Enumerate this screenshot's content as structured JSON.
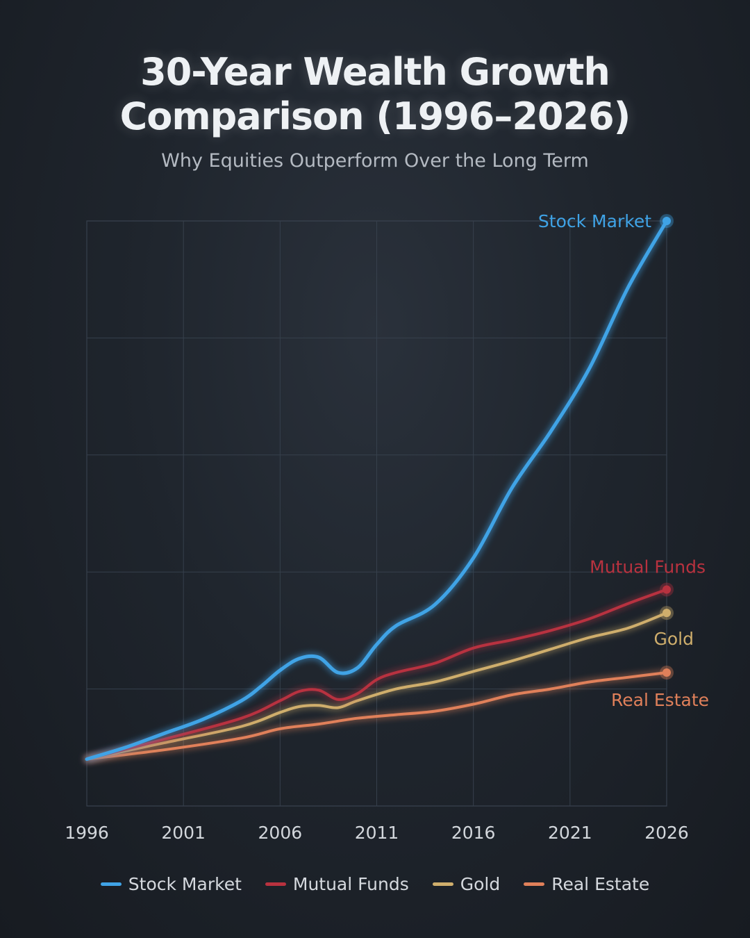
{
  "title_line1": "30-Year Wealth Growth",
  "title_line2": "Comparison (1996–2026)",
  "subtitle": "Why Equities Outperform Over the Long Term",
  "chart_data": {
    "type": "line",
    "title": "30-Year Wealth Growth Comparison (1996–2026)",
    "subtitle": "Why Equities Outperform Over the Long Term",
    "xlabel": "",
    "ylabel": "",
    "x_ticks": [
      1996,
      2001,
      2006,
      2011,
      2016,
      2021,
      2026
    ],
    "xlim": [
      1996,
      2026
    ],
    "ylim": [
      -0.4,
      4.6
    ],
    "grid": true,
    "y_tick_labels_shown": false,
    "legend_placement": "bottom",
    "series": [
      {
        "name": "Stock Market",
        "color": "#3fa3e6",
        "end_label": "Stock Market",
        "x": [
          1996,
          1998,
          2000,
          2002,
          2004,
          2005,
          2006,
          2007,
          2008,
          2009,
          2010,
          2011,
          2012,
          2014,
          2016,
          2018,
          2020,
          2022,
          2024,
          2026
        ],
        "y": [
          0,
          0.1,
          0.22,
          0.34,
          0.5,
          0.62,
          0.76,
          0.86,
          0.87,
          0.74,
          0.78,
          0.98,
          1.14,
          1.32,
          1.72,
          2.32,
          2.8,
          3.34,
          4.03,
          4.6
        ]
      },
      {
        "name": "Mutual Funds",
        "color": "#b8323f",
        "end_label": "Mutual Funds",
        "x": [
          1996,
          2000,
          2004,
          2006,
          2007,
          2008,
          2009,
          2010,
          2011,
          2012,
          2014,
          2016,
          2018,
          2020,
          2022,
          2024,
          2026
        ],
        "y": [
          0,
          0.17,
          0.35,
          0.5,
          0.58,
          0.59,
          0.51,
          0.56,
          0.68,
          0.74,
          0.82,
          0.95,
          1.02,
          1.1,
          1.2,
          1.33,
          1.45
        ]
      },
      {
        "name": "Gold",
        "color": "#cfae6c",
        "end_label": "Gold",
        "x": [
          1996,
          2000,
          2004,
          2006,
          2007,
          2008,
          2009,
          2010,
          2012,
          2014,
          2016,
          2018,
          2020,
          2022,
          2024,
          2026
        ],
        "y": [
          0,
          0.14,
          0.28,
          0.4,
          0.45,
          0.46,
          0.44,
          0.5,
          0.6,
          0.66,
          0.75,
          0.84,
          0.94,
          1.04,
          1.12,
          1.25
        ]
      },
      {
        "name": "Real Estate",
        "color": "#e0805a",
        "end_label": "Real Estate",
        "x": [
          1996,
          2000,
          2004,
          2006,
          2008,
          2010,
          2012,
          2014,
          2016,
          2018,
          2020,
          2022,
          2024,
          2026
        ],
        "y": [
          0,
          0.08,
          0.18,
          0.26,
          0.3,
          0.35,
          0.38,
          0.41,
          0.47,
          0.55,
          0.6,
          0.66,
          0.7,
          0.74
        ]
      }
    ]
  }
}
